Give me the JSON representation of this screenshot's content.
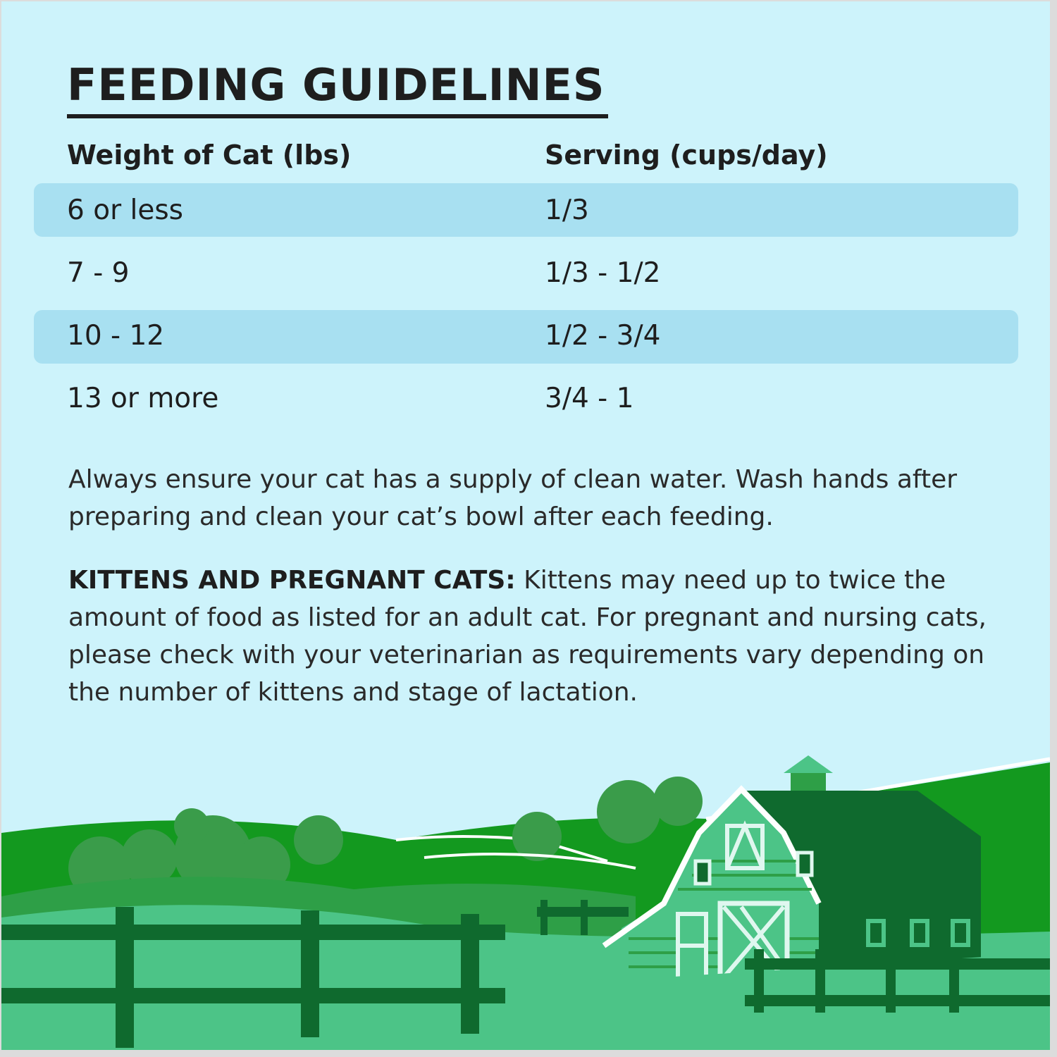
{
  "title": "FEEDING GUIDELINES",
  "table": {
    "headers": [
      "Weight of Cat (lbs)",
      "Serving (cups/day)"
    ],
    "rows": [
      {
        "weight": "6 or less",
        "serving": "1/3"
      },
      {
        "weight": "7 - 9",
        "serving": "1/3 - 1/2"
      },
      {
        "weight": "10 - 12",
        "serving": "1/2 - 3/4"
      },
      {
        "weight": "13 or more",
        "serving": "3/4 - 1"
      }
    ]
  },
  "notes": {
    "water": "Always ensure your cat has a supply of clean water. Wash hands after preparing and clean your cat’s bowl after each feeding.",
    "kittens_label": "KITTENS AND PREGNANT CATS:",
    "kittens_text": " Kittens may need up to twice the amount of food as listed for an adult cat. For pregnant and nursing cats, please check with your veterinarian as requirements vary depending on the number of kittens and stage of lactation."
  },
  "colors": {
    "background": "#cdf3fb",
    "row_highlight": "#a8e0f1",
    "grass": "#4cc487",
    "dark_green": "#0f6a2e",
    "hill": "#13991f"
  }
}
